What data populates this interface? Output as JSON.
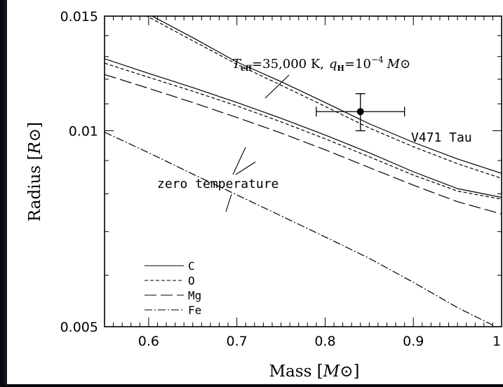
{
  "chart_data": {
    "type": "line",
    "xlabel": "Mass",
    "xunit": "M⊙",
    "ylabel": "Radius",
    "yunit": "R⊙",
    "xlim": [
      0.55,
      1.0
    ],
    "ylim": [
      0.005,
      0.015
    ],
    "yscale": "log",
    "grid": false,
    "xticks": [
      0.6,
      0.7,
      0.8,
      0.9,
      1.0
    ],
    "xtick_labels": [
      "0.6",
      "0.7",
      "0.8",
      "0.9",
      "1"
    ],
    "yticks": [
      0.005,
      0.01,
      0.015
    ],
    "ytick_labels": [
      "0.005",
      "0.01",
      "0.015"
    ],
    "legend_position": "bottom-left",
    "series": [
      {
        "name": "C",
        "style": "solid",
        "group": "Teff",
        "x": [
          0.55,
          0.6,
          0.65,
          0.7,
          0.75,
          0.8,
          0.85,
          0.9,
          0.95,
          1.0
        ],
        "y": [
          0.01625,
          0.0151,
          0.0139,
          0.01275,
          0.0119,
          0.01105,
          0.01025,
          0.0096,
          0.00905,
          0.0086
        ]
      },
      {
        "name": "O",
        "style": "dashed",
        "group": "Teff",
        "x": [
          0.55,
          0.6,
          0.65,
          0.7,
          0.75,
          0.8,
          0.85,
          0.9,
          0.95,
          1.0
        ],
        "y": [
          0.0161,
          0.01495,
          0.01375,
          0.01265,
          0.01175,
          0.0109,
          0.0101,
          0.00945,
          0.0089,
          0.00845
        ]
      },
      {
        "name": "C",
        "style": "solid",
        "group": "zero",
        "x": [
          0.55,
          0.6,
          0.65,
          0.7,
          0.75,
          0.8,
          0.85,
          0.9,
          0.95,
          1.0
        ],
        "y": [
          0.0129,
          0.01225,
          0.01165,
          0.01105,
          0.01045,
          0.00985,
          0.00925,
          0.00865,
          0.00815,
          0.0079
        ]
      },
      {
        "name": "O",
        "style": "dashed",
        "group": "zero",
        "x": [
          0.55,
          0.6,
          0.65,
          0.7,
          0.75,
          0.8,
          0.85,
          0.9,
          0.95,
          1.0
        ],
        "y": [
          0.0127,
          0.01208,
          0.0115,
          0.01092,
          0.01032,
          0.00972,
          0.00912,
          0.00855,
          0.00808,
          0.00785
        ]
      },
      {
        "name": "Mg",
        "style": "longdash",
        "group": "zero",
        "x": [
          0.55,
          0.6,
          0.65,
          0.7,
          0.75,
          0.8,
          0.85,
          0.9,
          0.95,
          1.0
        ],
        "y": [
          0.0122,
          0.01162,
          0.01105,
          0.01048,
          0.00992,
          0.00935,
          0.00878,
          0.00825,
          0.00778,
          0.00745
        ]
      },
      {
        "name": "Fe",
        "style": "dashdot",
        "group": "zero",
        "x": [
          0.55,
          0.6,
          0.65,
          0.7,
          0.75,
          0.8,
          0.85,
          0.9,
          0.95,
          1.0
        ],
        "y": [
          0.00995,
          0.00925,
          0.00858,
          0.00797,
          0.0074,
          0.00687,
          0.00637,
          0.00585,
          0.00535,
          0.00495
        ]
      }
    ],
    "measurement": {
      "label": "V471 Tau",
      "x": 0.84,
      "y": 0.0107,
      "xerr": 0.05,
      "yerr_low": 0.01,
      "yerr_high": 0.0114
    },
    "annotations": {
      "teff_annotation": {
        "teff_symbol": "T",
        "teff_sub": "eff",
        "teff_value": "=35,000 K,",
        "q_symbol": "q",
        "q_sub": "H",
        "q_value": "=10",
        "q_exp": "−4",
        "q_unit": "M⊙"
      },
      "zero_label": "zero temperature"
    },
    "legend": [
      {
        "label": "C",
        "style": "solid"
      },
      {
        "label": "O",
        "style": "dashed"
      },
      {
        "label": "Mg",
        "style": "longdash"
      },
      {
        "label": "Fe",
        "style": "dashdot"
      }
    ]
  }
}
